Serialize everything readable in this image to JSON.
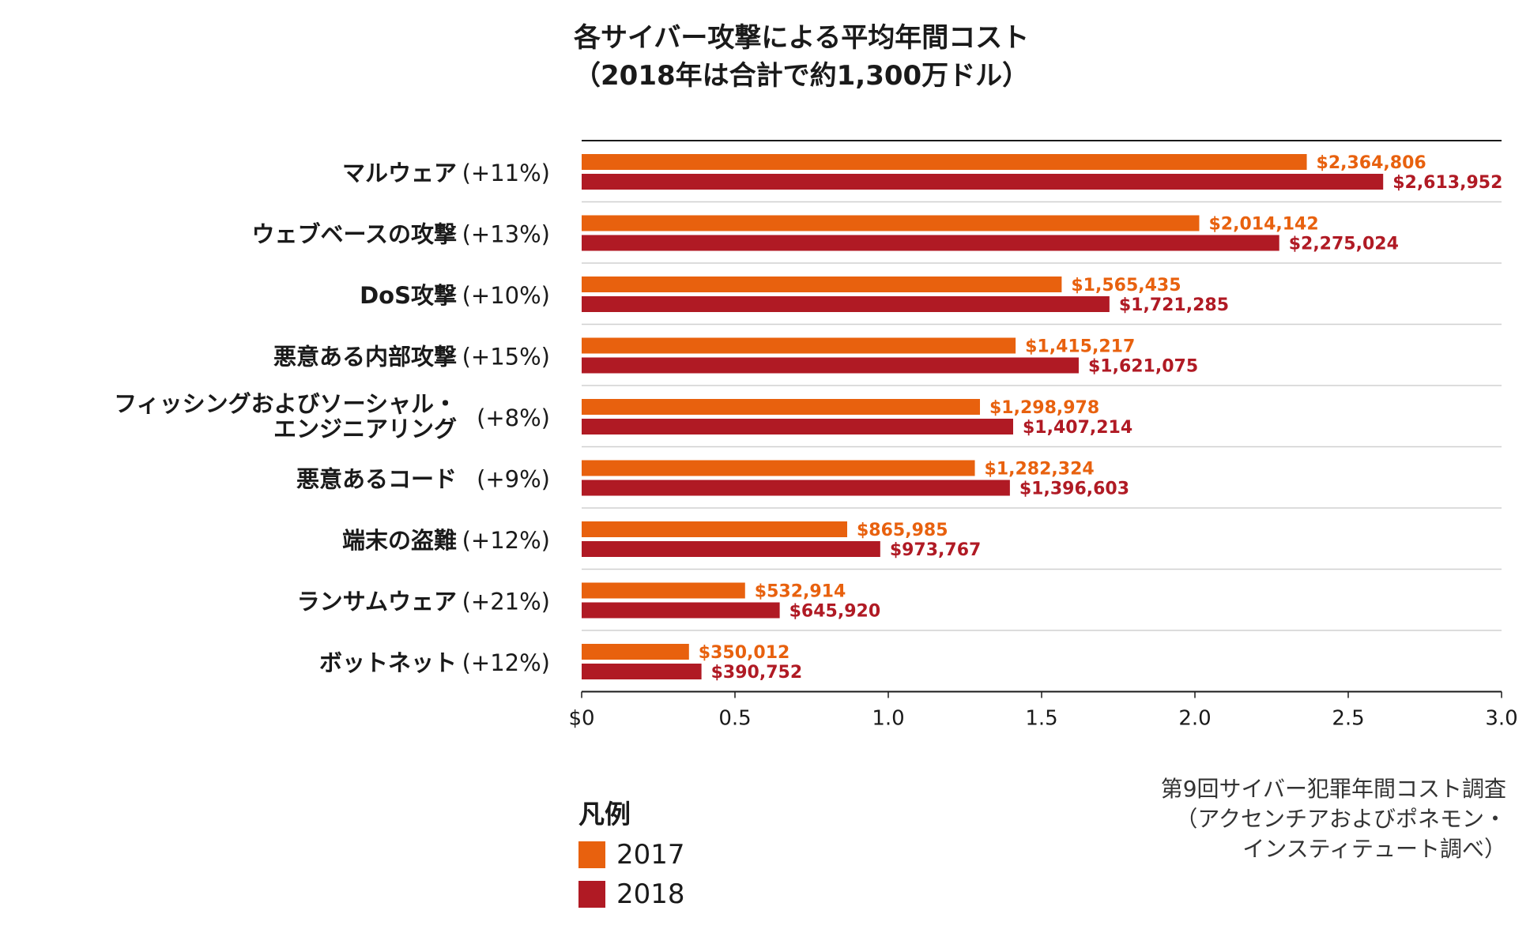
{
  "title": {
    "line1": "各サイバー攻撃による平均年間コスト",
    "line2": "（2018年は合計で約1,300万ドル）"
  },
  "colors": {
    "y2017": "#E8610E",
    "y2018": "#B01A24"
  },
  "chart_data": {
    "type": "bar",
    "orientation": "horizontal",
    "title": "各サイバー攻撃による平均年間コスト（2018年は合計で約1,300万ドル）",
    "categories": [
      {
        "lines": [
          "マルウェア"
        ],
        "change": "(+11%)"
      },
      {
        "lines": [
          "ウェブベースの攻撃"
        ],
        "change": "(+13%)"
      },
      {
        "lines": [
          "DoS攻撃"
        ],
        "change": "(+10%)"
      },
      {
        "lines": [
          "悪意ある内部攻撃"
        ],
        "change": "(+15%)"
      },
      {
        "lines": [
          "フィッシングおよびソーシャル・",
          "エンジニアリング"
        ],
        "change": "(+8%)"
      },
      {
        "lines": [
          "悪意あるコード"
        ],
        "change": "(+9%)"
      },
      {
        "lines": [
          "端末の盗難"
        ],
        "change": "(+12%)"
      },
      {
        "lines": [
          "ランサムウェア"
        ],
        "change": "(+21%)"
      },
      {
        "lines": [
          "ボットネット"
        ],
        "change": "(+12%)"
      }
    ],
    "series": [
      {
        "name": "2017",
        "values": [
          2364806,
          2014142,
          1565435,
          1415217,
          1298978,
          1282324,
          865985,
          532914,
          350012
        ],
        "labels": [
          "$2,364,806",
          "$2,014,142",
          "$1,565,435",
          "$1,415,217",
          "$1,298,978",
          "$1,282,324",
          "$865,985",
          "$532,914",
          "$350,012"
        ]
      },
      {
        "name": "2018",
        "values": [
          2613952,
          2275024,
          1721285,
          1621075,
          1407214,
          1396603,
          973767,
          645920,
          390752
        ],
        "labels": [
          "$2,613,952",
          "$2,275,024",
          "$1,721,285",
          "$1,621,075",
          "$1,407,214",
          "$1,396,603",
          "$973,767",
          "$645,920",
          "$390,752"
        ]
      }
    ],
    "xlim": [
      0,
      3000000
    ],
    "xticks": [
      {
        "value": 0,
        "label": "$0"
      },
      {
        "value": 500000,
        "label": "0.5"
      },
      {
        "value": 1000000,
        "label": "1.0"
      },
      {
        "value": 1500000,
        "label": "1.5"
      },
      {
        "value": 2000000,
        "label": "2.0"
      },
      {
        "value": 2500000,
        "label": "2.5"
      },
      {
        "value": 3000000,
        "label": "3.0"
      }
    ],
    "xlabel": "",
    "ylabel": "",
    "legend_position": "bottom-left"
  },
  "legend": {
    "title": "凡例",
    "items": [
      "2017",
      "2018"
    ]
  },
  "source": {
    "line1": "第9回サイバー犯罪年間コスト調査",
    "line2": "（アクセンチアおよびポネモン・",
    "line3": "インスティテュート調べ）"
  }
}
